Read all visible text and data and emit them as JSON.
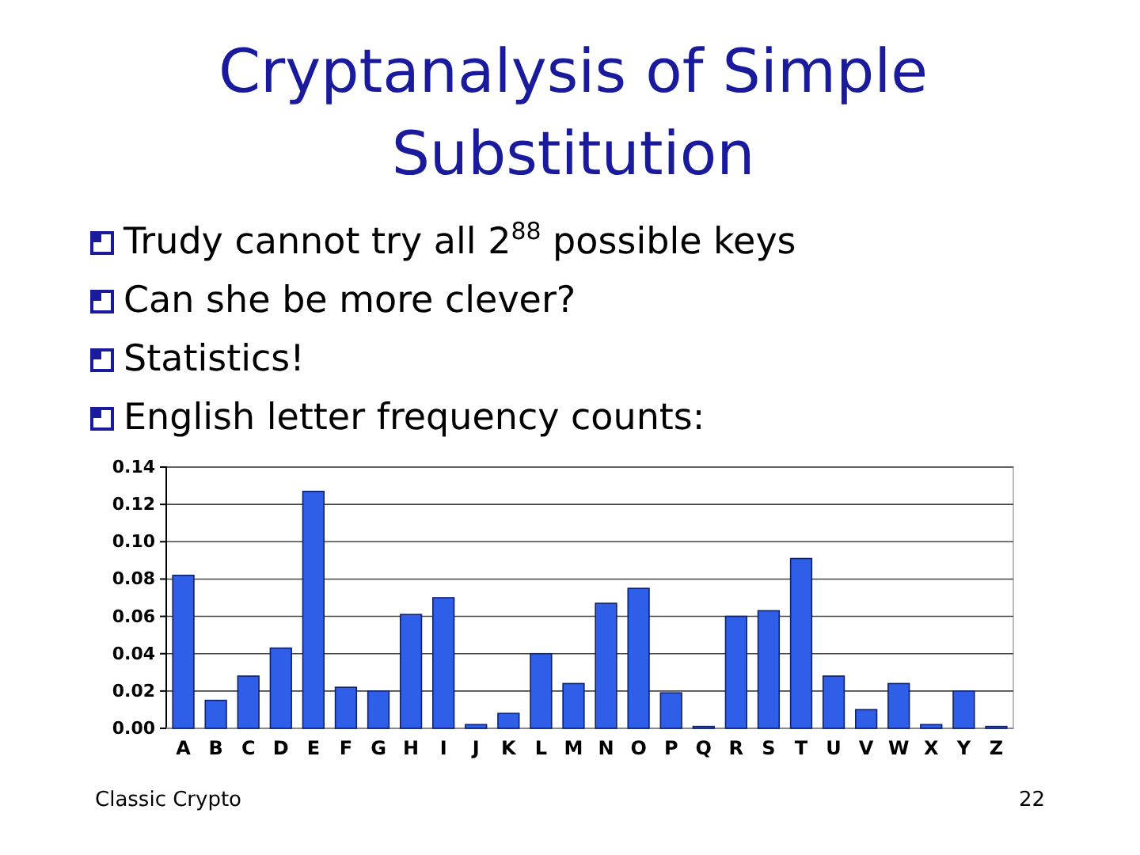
{
  "chart_data": {
    "type": "bar",
    "title": "Cryptanalysis of Simple Substitution",
    "annotations": [
      "Trudy cannot try all 2$^{88}$ possible keys",
      "Can she be more clever?",
      "Statistics!",
      "English letter frequency counts:",
      "Classic Crypto",
      "22"
    ],
    "categories": [
      "A",
      "B",
      "C",
      "D",
      "E",
      "F",
      "G",
      "H",
      "I",
      "J",
      "K",
      "L",
      "M",
      "N",
      "O",
      "P",
      "Q",
      "R",
      "S",
      "T",
      "U",
      "V",
      "W",
      "X",
      "Y",
      "Z"
    ],
    "values": [
      0.082,
      0.015,
      0.028,
      0.043,
      0.127,
      0.022,
      0.02,
      0.061,
      0.07,
      0.002,
      0.008,
      0.04,
      0.024,
      0.067,
      0.075,
      0.019,
      0.001,
      0.06,
      0.063,
      0.091,
      0.028,
      0.01,
      0.024,
      0.002,
      0.02,
      0.001
    ],
    "color": "#2f5fe8",
    "ylim": [
      0,
      0.14
    ],
    "yticks": [
      {
        "value": 0,
        "label": "0.00"
      },
      {
        "value": 0.02,
        "label": "0.02"
      },
      {
        "value": 0.04,
        "label": "0.04"
      },
      {
        "value": 0.06,
        "label": "0.06"
      },
      {
        "value": 0.08,
        "label": "0.08"
      },
      {
        "value": 0.1,
        "label": "0.10"
      },
      {
        "value": 0.12,
        "label": "0.12"
      },
      {
        "value": 0.14,
        "label": "0.14"
      }
    ],
    "grid": "y"
  }
}
